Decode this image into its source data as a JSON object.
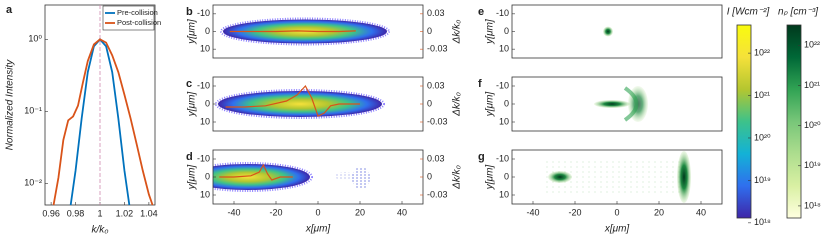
{
  "chart_data": [
    {
      "type": "line",
      "panel": "a",
      "xlabel": "k/k₀",
      "ylabel": "Normalized Intensity",
      "xlim": [
        0.955,
        1.045
      ],
      "xticks": [
        0.96,
        0.98,
        1,
        1.02,
        1.04
      ],
      "ylim": [
        0.005,
        3
      ],
      "log_y": true,
      "yticks": [
        {
          "value": 1,
          "label": "10⁰"
        },
        {
          "value": 0.1,
          "label": "10⁻¹"
        },
        {
          "value": 0.01,
          "label": "10⁻²"
        }
      ],
      "legend": "upper right",
      "series": [
        {
          "name": "Pre-collision",
          "color": "#0072BD",
          "x": [
            0.976,
            0.98,
            0.985,
            0.99,
            0.995,
            1,
            1.005,
            1.01,
            1.015,
            1.02,
            1.024
          ],
          "values": [
            0.005,
            0.015,
            0.08,
            0.35,
            0.8,
            1,
            0.8,
            0.35,
            0.08,
            0.015,
            0.005
          ]
        },
        {
          "name": "Post-collision",
          "color": "#D95319",
          "x": [
            0.962,
            0.966,
            0.97,
            0.974,
            0.978,
            0.982,
            0.986,
            0.99,
            0.995,
            1,
            1.005,
            1.01,
            1.015,
            1.02,
            1.025,
            1.03,
            1.035,
            1.04,
            1.043
          ],
          "values": [
            0.005,
            0.012,
            0.04,
            0.075,
            0.085,
            0.12,
            0.25,
            0.5,
            0.85,
            1,
            0.9,
            0.6,
            0.35,
            0.17,
            0.08,
            0.035,
            0.015,
            0.007,
            0.005
          ]
        }
      ]
    },
    {
      "type": "heatmap",
      "panel": "b",
      "ylabel": "y[μm]",
      "y2label": "Δk/k₀",
      "xlim": [
        -50,
        50
      ],
      "ylim": [
        -15,
        15
      ],
      "y_reversed": true,
      "yticks": [
        -10,
        0,
        10
      ],
      "y2lim": [
        -0.045,
        0.045
      ],
      "y2ticks": [
        0.03,
        0,
        -0.03
      ],
      "series": [
        {
          "color": "#D95319",
          "axis": "y2",
          "x": [
            -42,
            -30,
            -20,
            -10,
            0,
            10,
            18
          ],
          "values": [
            0,
            0,
            0,
            0.001,
            0,
            0,
            0.001
          ]
        }
      ]
    },
    {
      "type": "heatmap",
      "panel": "c",
      "ylabel": "y[μm]",
      "y2label": "Δk/k₀",
      "xlim": [
        -50,
        50
      ],
      "ylim": [
        -15,
        15
      ],
      "y_reversed": true,
      "yticks": [
        -10,
        0,
        10
      ],
      "y2lim": [
        -0.045,
        0.045
      ],
      "y2ticks": [
        0.03,
        0,
        -0.03
      ],
      "series": [
        {
          "color": "#D95319",
          "axis": "y2",
          "x": [
            -44,
            -35,
            -25,
            -15,
            -10,
            -6,
            -3,
            0,
            3,
            6,
            10,
            20
          ],
          "values": [
            -0.005,
            -0.005,
            -0.003,
            0.005,
            0.015,
            0.03,
            0.01,
            -0.02,
            -0.015,
            -0.003,
            0,
            0
          ]
        }
      ]
    },
    {
      "type": "heatmap",
      "panel": "d",
      "xlabel": "x[μm]",
      "ylabel": "y[μm]",
      "y2label": "Δk/k₀",
      "xlim": [
        -50,
        50
      ],
      "xticks": [
        -40,
        -20,
        0,
        20,
        40
      ],
      "ylim": [
        -15,
        15
      ],
      "y_reversed": true,
      "yticks": [
        -10,
        0,
        10
      ],
      "y2lim": [
        -0.045,
        0.045
      ],
      "y2ticks": [
        0.03,
        0,
        -0.03
      ],
      "series": [
        {
          "color": "#D95319",
          "axis": "y2",
          "x": [
            -47,
            -40,
            -32,
            -28,
            -26,
            -24,
            -22,
            -18,
            -12
          ],
          "values": [
            0,
            0,
            0.002,
            0.008,
            0.02,
            0.005,
            -0.005,
            0,
            0
          ]
        }
      ]
    },
    {
      "type": "heatmap",
      "panel": "e",
      "ylabel": "y[μm]",
      "xlim": [
        -50,
        50
      ],
      "ylim": [
        -15,
        15
      ],
      "y_reversed": true,
      "yticks": [
        -10,
        0,
        10
      ],
      "series": []
    },
    {
      "type": "heatmap",
      "panel": "f",
      "ylabel": "y[μm]",
      "xlim": [
        -50,
        50
      ],
      "ylim": [
        -15,
        15
      ],
      "y_reversed": true,
      "yticks": [
        -10,
        0,
        10
      ],
      "series": []
    },
    {
      "type": "heatmap",
      "panel": "g",
      "xlabel": "x[μm]",
      "ylabel": "y[μm]",
      "xlim": [
        -50,
        50
      ],
      "xticks": [
        -40,
        -20,
        0,
        20,
        40
      ],
      "ylim": [
        -15,
        15
      ],
      "y_reversed": true,
      "yticks": [
        -10,
        0,
        10
      ],
      "series": []
    },
    {
      "type": "colorbar",
      "title": "I [Wcm⁻²]",
      "log_y": true,
      "ylim": [
        1.3e+18,
        4.6e+22
      ],
      "colors": [
        "#3e26a8",
        "#2f6fee",
        "#13b2d6",
        "#3dc28a",
        "#b4c630",
        "#f5e13a",
        "#f9fb0e"
      ],
      "yticks": [
        {
          "value": 1e+22,
          "label": "10²²"
        },
        {
          "value": 1e+21,
          "label": "10²¹"
        },
        {
          "value": 1e+20,
          "label": "10²⁰"
        },
        {
          "value": 1e+19,
          "label": "10¹⁹"
        },
        {
          "value": 1e+18,
          "label": "10¹⁸"
        }
      ]
    },
    {
      "type": "colorbar",
      "title": "nₚ [cm⁻³]",
      "log_y": true,
      "ylim": [
        5e+17,
        3.2e+22
      ],
      "colors": [
        "#ffffe0",
        "#d9f0a3",
        "#addd8e",
        "#78c679",
        "#31a354",
        "#006837",
        "#00391d"
      ],
      "yticks": [
        {
          "value": 1e+22,
          "label": "10²²"
        },
        {
          "value": 1e+21,
          "label": "10²¹"
        },
        {
          "value": 1e+20,
          "label": "10²⁰"
        },
        {
          "value": 1e+19,
          "label": "10¹⁹"
        },
        {
          "value": 1e+18,
          "label": "10¹⁸"
        }
      ]
    }
  ]
}
